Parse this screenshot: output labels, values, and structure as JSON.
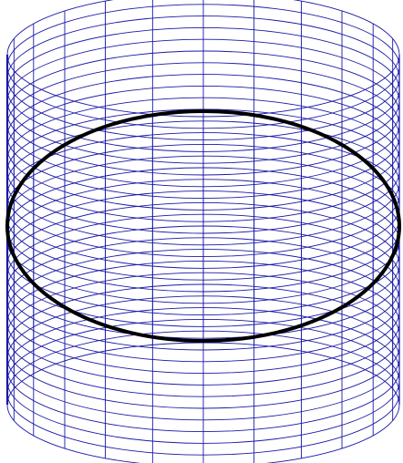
{
  "figure": {
    "type": "wireframe-cylinder",
    "mesh_color": "#1a1aa6",
    "highlight_color": "#000000",
    "background": "#ffffff",
    "vertical_rule_count": 24,
    "horizontal_ring_count": 30,
    "highlighted_ring": "equator"
  }
}
